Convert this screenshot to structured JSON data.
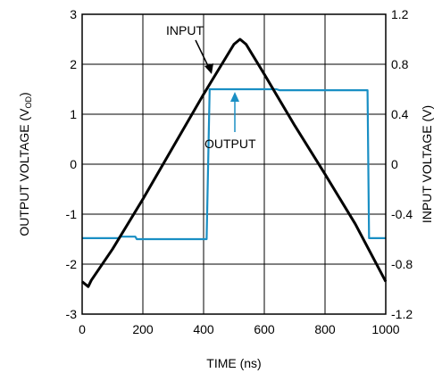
{
  "chart_data": {
    "type": "line",
    "xlabel": "TIME (ns)",
    "ylabel_left_main": "OUTPUT VOLTAGE (V",
    "ylabel_left_sub": "OD",
    "ylabel_left_close": ")",
    "ylabel_right": "INPUT VOLTAGE (V)",
    "xlim": [
      0,
      1000
    ],
    "ylim_left": [
      -3,
      3
    ],
    "ylim_right": [
      -1.2,
      1.2
    ],
    "grid": true,
    "x_ticks": [
      "0",
      "200",
      "400",
      "600",
      "800",
      "1000"
    ],
    "y_left_ticks": [
      "3",
      "2",
      "1",
      "0",
      "-1",
      "-2",
      "-3"
    ],
    "y_right_ticks": [
      "1.2",
      "0.8",
      "0.4",
      "0",
      "-0.4",
      "-0.8",
      "-1.2"
    ],
    "series": [
      {
        "name": "INPUT",
        "axis": "right",
        "color": "#000000",
        "x": [
          0,
          20,
          30,
          100,
          200,
          300,
          400,
          500,
          520,
          540,
          600,
          700,
          800,
          900,
          1000
        ],
        "y": [
          -0.94,
          -0.98,
          -0.93,
          -0.68,
          -0.28,
          0.14,
          0.56,
          0.96,
          1.0,
          0.96,
          0.72,
          0.31,
          -0.08,
          -0.48,
          -0.94
        ]
      },
      {
        "name": "OUTPUT",
        "axis": "left",
        "color": "#1a8fc4",
        "x": [
          0,
          120,
          125,
          175,
          180,
          410,
          420,
          640,
          650,
          940,
          945,
          1000
        ],
        "y": [
          -1.48,
          -1.48,
          -1.45,
          -1.45,
          -1.5,
          -1.5,
          1.5,
          1.5,
          1.48,
          1.48,
          -1.48,
          -1.48
        ]
      }
    ],
    "annotations": [
      {
        "text": "INPUT",
        "color": "#000000"
      },
      {
        "text": "OUTPUT",
        "color": "#1a8fc4"
      }
    ]
  }
}
